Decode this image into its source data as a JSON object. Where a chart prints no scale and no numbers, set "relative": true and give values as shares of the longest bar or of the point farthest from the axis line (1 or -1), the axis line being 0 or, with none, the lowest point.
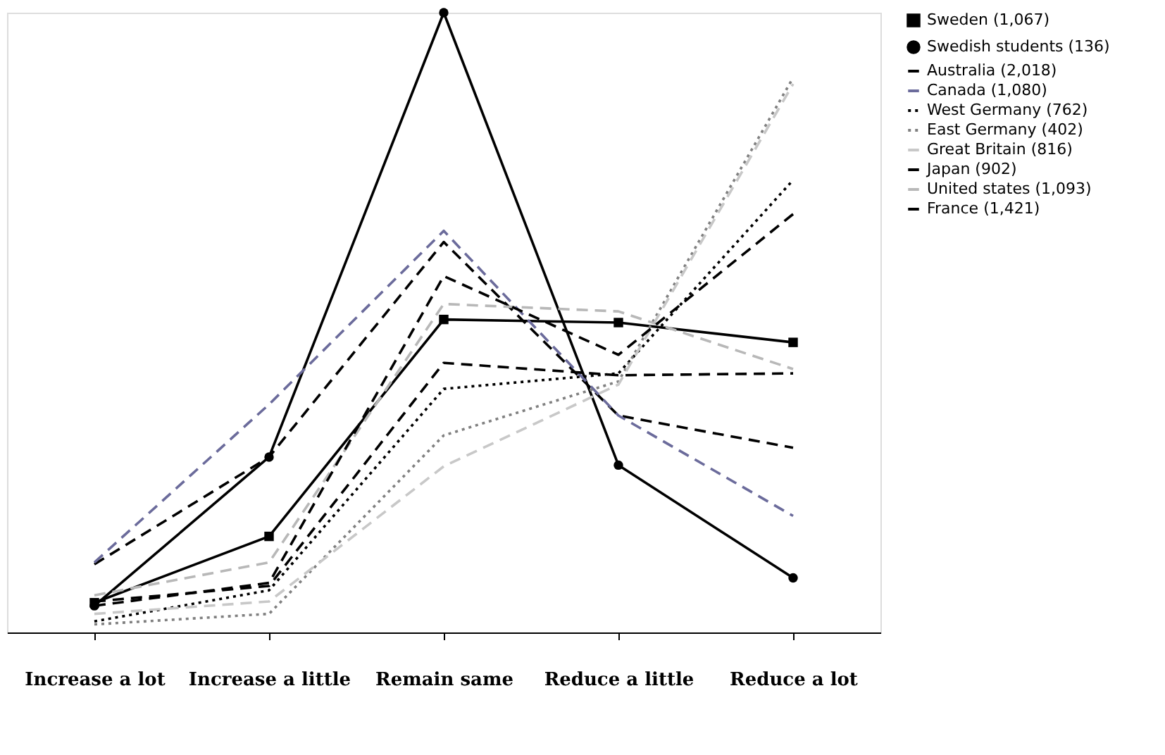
{
  "chart_data": {
    "type": "line",
    "relative": true,
    "legend": "right",
    "grid": false,
    "categories": [
      "Increase a lot",
      "Increase a little",
      "Remain same",
      "Reduce a little",
      "Reduce a lot"
    ],
    "series": [
      {
        "name": "Sweden (1,067)",
        "color": "#000000",
        "line_style": "solid",
        "marker": "square",
        "values": [
          0.048,
          0.155,
          0.505,
          0.5,
          0.468
        ]
      },
      {
        "name": "Swedish students (136)",
        "color": "#000000",
        "line_style": "solid",
        "marker": "circle",
        "values": [
          0.043,
          0.283,
          1.0,
          0.27,
          0.088
        ]
      },
      {
        "name": "Australia (2,018)",
        "color": "#000000",
        "line_style": "dashed",
        "marker": "none",
        "values": [
          0.11,
          0.283,
          0.63,
          0.35,
          0.298
        ]
      },
      {
        "name": "Canada (1,080)",
        "color": "#6b6b9b",
        "line_style": "dashed",
        "marker": "none",
        "values": [
          0.113,
          0.368,
          0.648,
          0.35,
          0.188
        ]
      },
      {
        "name": "West Germany (762)",
        "color": "#000000",
        "line_style": "dotted",
        "marker": "none",
        "values": [
          0.018,
          0.068,
          0.393,
          0.418,
          0.73
        ]
      },
      {
        "name": "East Germany (402)",
        "color": "#808080",
        "line_style": "dotted",
        "marker": "none",
        "values": [
          0.013,
          0.03,
          0.318,
          0.405,
          0.895
        ]
      },
      {
        "name": "Great Britain (816)",
        "color": "#c8c8c8",
        "line_style": "dashed",
        "marker": "none",
        "values": [
          0.03,
          0.05,
          0.268,
          0.4,
          0.885
        ]
      },
      {
        "name": "Japan (902)",
        "color": "#000000",
        "line_style": "dashed",
        "marker": "none",
        "values": [
          0.05,
          0.075,
          0.435,
          0.415,
          0.418
        ]
      },
      {
        "name": "United states (1,093)",
        "color": "#b8b8b8",
        "line_style": "dashed",
        "marker": "none",
        "values": [
          0.06,
          0.113,
          0.53,
          0.518,
          0.425
        ]
      },
      {
        "name": "France (1,421)",
        "color": "#000000",
        "line_style": "dashed",
        "marker": "none",
        "values": [
          0.043,
          0.08,
          0.575,
          0.448,
          0.675
        ]
      }
    ]
  }
}
